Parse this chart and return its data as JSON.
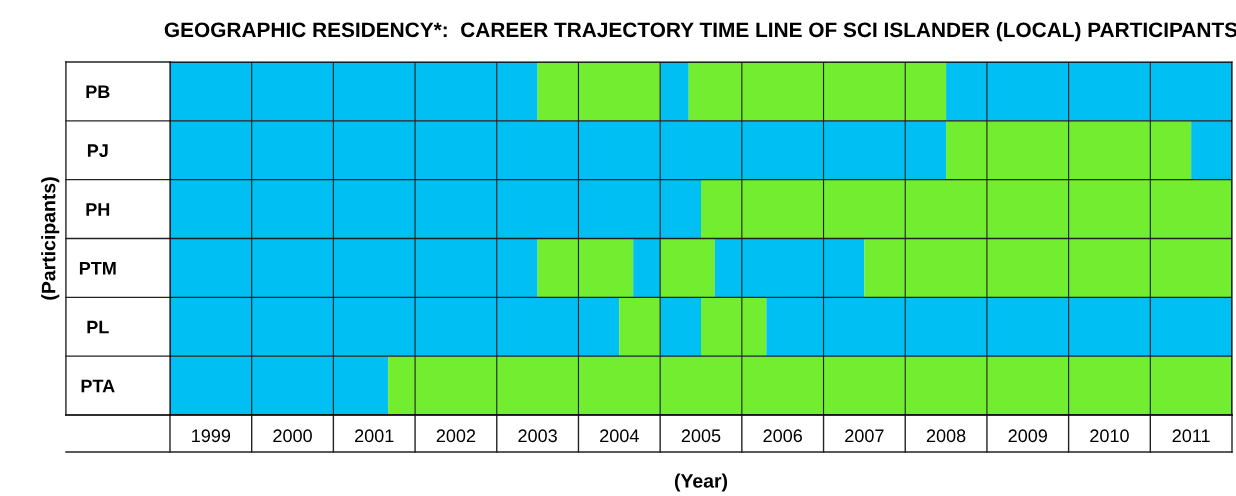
{
  "chart_data": {
    "type": "bar",
    "orientation": "horizontal",
    "title": "GEOGRAPHIC RESIDENCY*:  CAREER TRAJECTORY TIME LINE OF SCI ISLANDER (LOCAL) PARTICIPANTS",
    "xlabel": "(Year)",
    "ylabel": "(Participants)",
    "categories": [
      "PB",
      "PJ",
      "PH",
      "PTM",
      "PL",
      "PTA"
    ],
    "series": [
      {
        "color": "#00bff3",
        "base": [
          1999,
          1999,
          1999,
          1999,
          1999,
          1999
        ],
        "values": [
          4.5,
          9.5,
          6.5,
          4.5,
          5.5,
          2.67
        ]
      },
      {
        "color": "#72ed2f",
        "base": [
          2003.5,
          2008.5,
          2005.5,
          2003.5,
          2004.5,
          2001.67
        ],
        "values": [
          1.5,
          3.0,
          6.5,
          1.17,
          0.5,
          10.33
        ]
      },
      {
        "color": "#00bff3",
        "base": [
          2005,
          2011.5,
          null,
          2004.67,
          2005,
          null
        ],
        "values": [
          0.35,
          0.5,
          null,
          0.33,
          0.5,
          null
        ]
      },
      {
        "color": "#72ed2f",
        "base": [
          2005.35,
          null,
          null,
          2005,
          2005.5,
          null
        ],
        "values": [
          3.15,
          null,
          null,
          0.67,
          0.8,
          null
        ]
      },
      {
        "color": "#00bff3",
        "base": [
          2008.5,
          null,
          null,
          2005.67,
          2006.3,
          null
        ],
        "values": [
          3.5,
          null,
          null,
          1.83,
          5.7,
          null
        ]
      },
      {
        "color": "#72ed2f",
        "base": [
          null,
          null,
          null,
          2007.5,
          null,
          null
        ],
        "values": [
          null,
          null,
          null,
          4.5,
          null,
          null
        ]
      }
    ],
    "xlim": [
      1999,
      2012
    ],
    "xticks": [
      {
        "value": 1999,
        "label": null
      },
      {
        "value": 1999.5,
        "label": "1999"
      },
      {
        "value": 2000,
        "label": null
      },
      {
        "value": 2000.5,
        "label": "2000"
      },
      {
        "value": 2001,
        "label": null
      },
      {
        "value": 2001.5,
        "label": "2001"
      },
      {
        "value": 2002,
        "label": null
      },
      {
        "value": 2002.5,
        "label": "2002"
      },
      {
        "value": 2003,
        "label": null
      },
      {
        "value": 2003.5,
        "label": "2003"
      },
      {
        "value": 2004,
        "label": null
      },
      {
        "value": 2004.5,
        "label": "2004"
      },
      {
        "value": 2005,
        "label": null
      },
      {
        "value": 2005.5,
        "label": "2005"
      },
      {
        "value": 2006,
        "label": null
      },
      {
        "value": 2006.5,
        "label": "2006"
      },
      {
        "value": 2007,
        "label": null
      },
      {
        "value": 2007.5,
        "label": "2007"
      },
      {
        "value": 2008,
        "label": null
      },
      {
        "value": 2008.5,
        "label": "2008"
      },
      {
        "value": 2009,
        "label": null
      },
      {
        "value": 2009.5,
        "label": "2009"
      },
      {
        "value": 2010,
        "label": null
      },
      {
        "value": 2010.5,
        "label": "2010"
      },
      {
        "value": 2011,
        "label": null
      },
      {
        "value": 2011.5,
        "label": "2011"
      },
      {
        "value": 2012,
        "label": null
      }
    ],
    "grid": "x"
  }
}
